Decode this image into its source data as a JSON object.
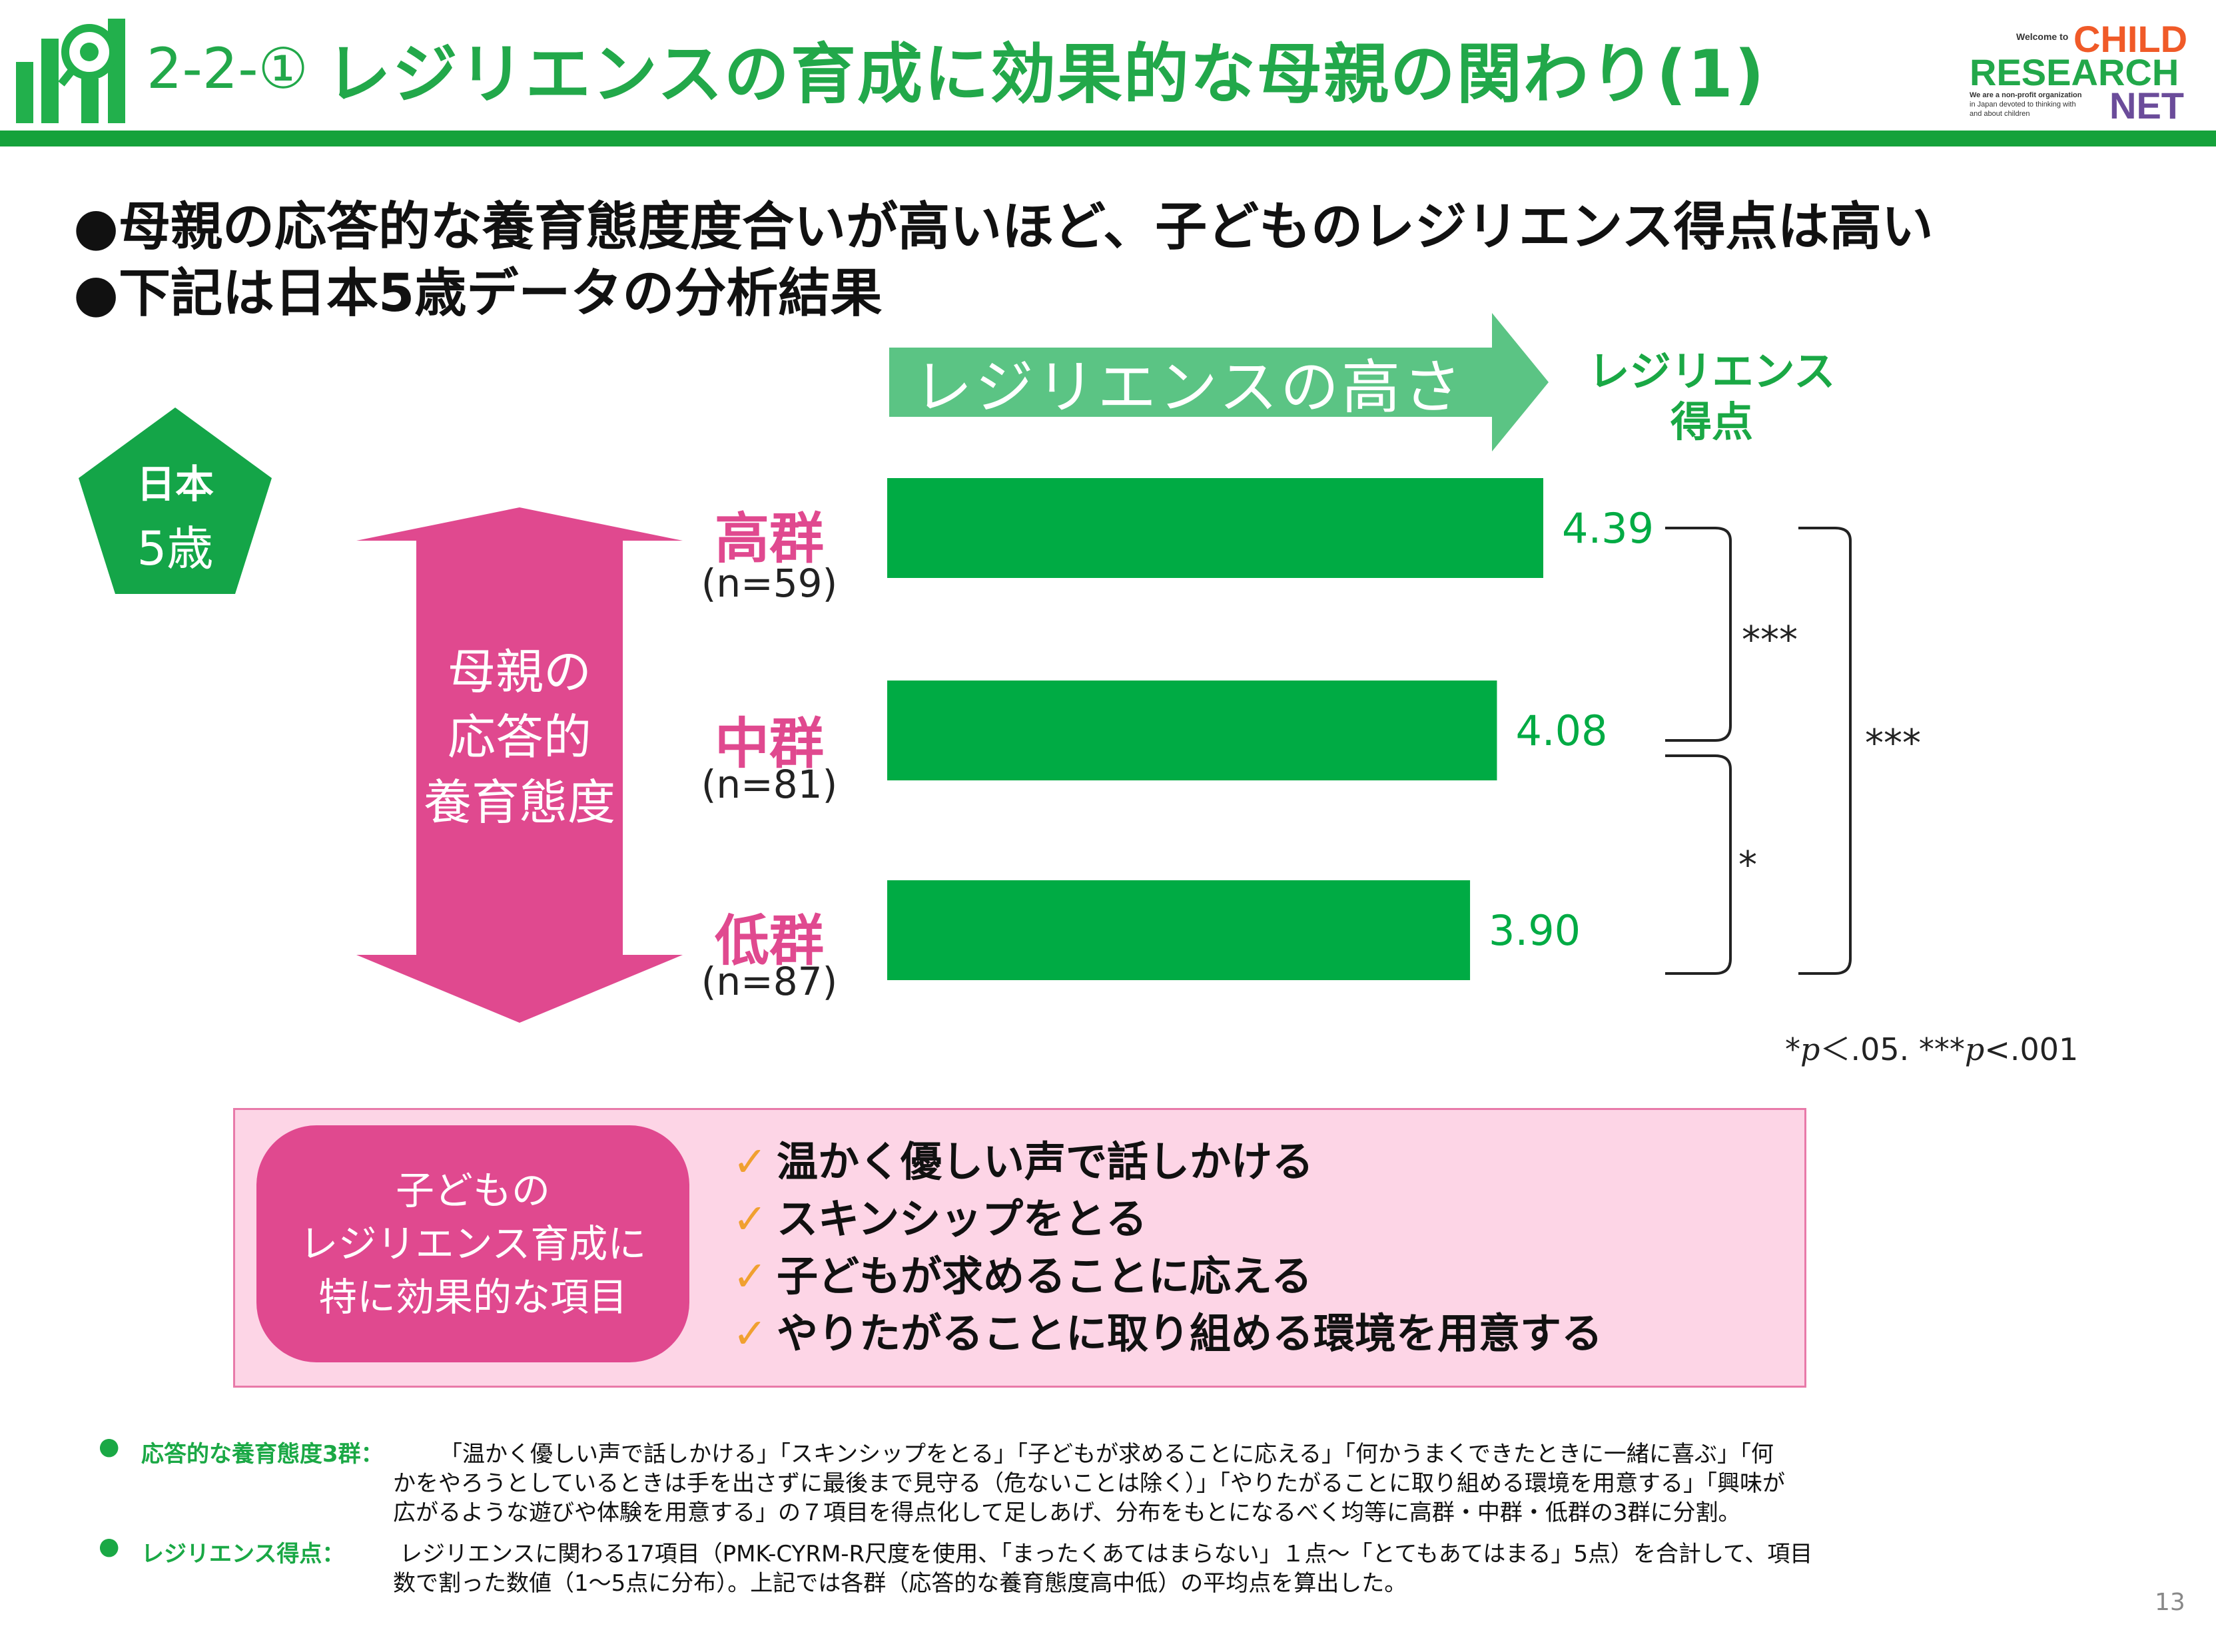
{
  "header": {
    "section_number": "2-2-①",
    "title": "レジリエンスの育成に効果的な母親の関わり(1)",
    "logo": {
      "welcome": "Welcome to",
      "line1": "CHILD",
      "line2": "RESEARCH",
      "line3": "NET",
      "tagline1": "We are a non-profit organization",
      "tagline2": "in Japan devoted to thinking with",
      "tagline3": "and about children",
      "colors": {
        "orange": "#f05a28",
        "green": "#22a84a",
        "purple": "#6b4c9a"
      }
    },
    "slide_icon": "bar-chart-magnifier-icon"
  },
  "bullets": [
    "●母親の応答的な養育態度度合いが高いほど、子どものレジリエンス得点は高い",
    "●下記は日本5歳データの分析結果"
  ],
  "badge": {
    "country": "日本",
    "age": "5歳",
    "color": "#14a548"
  },
  "attitude_label": [
    "母親の",
    "応答的",
    "養育態度"
  ],
  "arrow_label": "レジリエンスの高さ",
  "score_label": [
    "レジリエンス",
    "得点"
  ],
  "chart_data": {
    "type": "bar",
    "orientation": "horizontal",
    "categories": [
      "高群",
      "中群",
      "低群"
    ],
    "group_sizes": [
      "(n=59)",
      "(n=81)",
      "(n=87)"
    ],
    "values": [
      4.39,
      4.08,
      3.9
    ],
    "value_labels": [
      "4.39",
      "4.08",
      "3.90"
    ],
    "bar_color": "#00ab44",
    "xlim": [
      0,
      4.39
    ],
    "grid": false,
    "significance": [
      {
        "between": [
          "高群",
          "中群"
        ],
        "label": "***"
      },
      {
        "between": [
          "中群",
          "低群"
        ],
        "label": "*"
      },
      {
        "between": [
          "高群",
          "低群"
        ],
        "label": "***"
      }
    ],
    "note": {
      "p1_prefix": "*",
      "p": "p",
      "p1_suffix": "＜.05. ",
      "p2_prefix": "***",
      "p2_suffix": "<.001"
    }
  },
  "effective_items": {
    "pill_lines": [
      "子どもの",
      "レジリエンス育成に",
      "特に効果的な項目"
    ],
    "items": [
      "温かく優しい声で話しかける",
      "スキンシップをとる",
      "子どもが求めることに応える",
      "やりたがることに取り組める環境を用意する"
    ],
    "check_icon": "check-icon"
  },
  "notes": [
    {
      "head": "応答的な養育態度3群：",
      "lines": [
        "「温かく優しい声で話しかける」「スキンシップをとる」「子どもが求めることに応える」「何かうまくできたときに一緒に喜ぶ」「何",
        "かをやろうとしているときは手を出さずに最後まで見守る（危ないことは除く）」「やりたがることに取り組める環境を用意する」「興味が",
        "広がるような遊びや体験を用意する」の７項目を得点化して足しあげ、分布をもとになるべく均等に高群・中群・低群の3群に分割。"
      ]
    },
    {
      "head": "レジリエンス得点：",
      "lines": [
        "レジリエンスに関わる17項目（PMK-CYRM-R尺度を使用、「まったくあてはまらない」１点〜「とてもあてはまる」5点）を合計して、項目",
        "数で割った数値（1〜5点に分布）。上記では各群（応答的な養育態度高中低）の平均点を算出した。"
      ]
    }
  ],
  "page_number": "13"
}
